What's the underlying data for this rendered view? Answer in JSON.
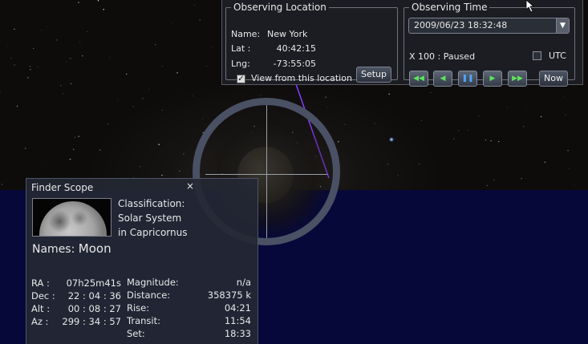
{
  "observing_location": {
    "title": "Observing Location",
    "name_label": "Name:",
    "name_value": "New York",
    "lat_label": "Lat :",
    "lat_value": "40:42:15",
    "lng_label": "Lng:",
    "lng_value": "-73:55:05",
    "view_from_label": "View from this location",
    "view_from_checked": true,
    "setup_button": "Setup"
  },
  "observing_time": {
    "title": "Observing Time",
    "datetime": "2009/06/23  18:32:48",
    "speed_status": "X 100 : Paused",
    "utc_label": "UTC",
    "utc_checked": false,
    "now_button": "Now"
  },
  "finder_scope": {
    "title": "Finder Scope",
    "close_glyph": "×",
    "classification_lines": [
      "Classification:",
      "Solar System",
      "in Capricornus"
    ],
    "names_label": "Names:",
    "names_value": "Moon",
    "left_labels": [
      "RA :",
      "Dec :",
      "Alt :",
      "Az :"
    ],
    "left_values": [
      "07h25m41s",
      "22 : 04 : 36",
      "00 : 08 : 27",
      "299 : 34 : 57"
    ],
    "right_labels": [
      "Magnitude:",
      "Distance:",
      "Rise:",
      "Transit:",
      "Set:"
    ],
    "right_values": [
      "n/a",
      "358375 k",
      "04:21",
      "11:54",
      "18:33"
    ]
  },
  "colors": {
    "ground": "#07083a",
    "sky": "#0d0c0b",
    "panel": "#1b1d22",
    "reticle": "#4a5165",
    "play_green": "#5ee35e",
    "pause_blue": "#4fa3ff",
    "ecliptic_line": "#8a3cff"
  },
  "icons": [
    "rewind-fast-icon",
    "rewind-icon",
    "pause-icon",
    "play-icon",
    "fast-forward-icon",
    "dropdown-arrow-icon",
    "close-icon",
    "cursor-icon"
  ]
}
